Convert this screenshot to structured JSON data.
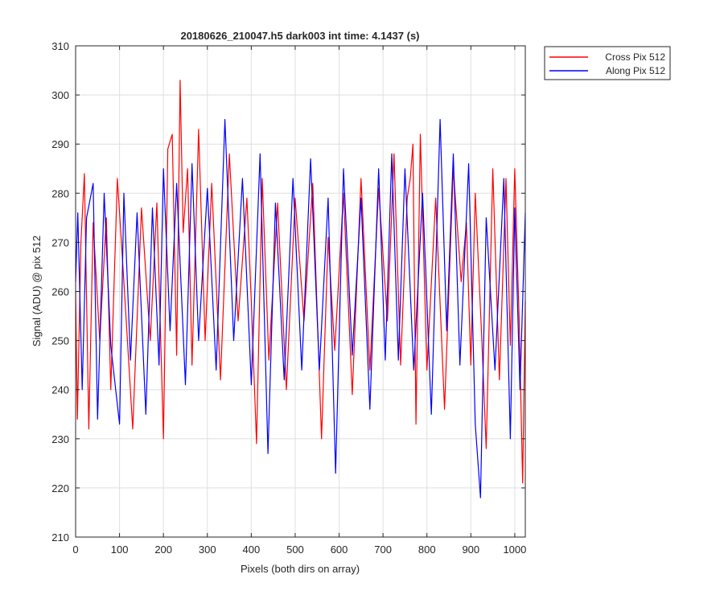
{
  "chart_data": {
    "type": "line",
    "title": "20180626_210047.h5  dark003   int time: 4.1437 (s)",
    "xlabel": "Pixels (both dirs on array)",
    "ylabel": "Signal (ADU) @ pix 512",
    "xlim": [
      0,
      1024
    ],
    "ylim": [
      210,
      310
    ],
    "xticks": [
      0,
      100,
      200,
      300,
      400,
      500,
      600,
      700,
      800,
      900,
      1000
    ],
    "yticks": [
      210,
      220,
      230,
      240,
      250,
      260,
      270,
      280,
      290,
      300,
      310
    ],
    "grid": true,
    "legend_position": "outside-top-right",
    "series": [
      {
        "name": "Cross Pix 512",
        "color": "#ff0000",
        "x": [
          0,
          4,
          12,
          20,
          30,
          40,
          55,
          70,
          80,
          95,
          110,
          130,
          150,
          170,
          185,
          200,
          210,
          220,
          230,
          238,
          245,
          255,
          265,
          280,
          295,
          310,
          330,
          350,
          370,
          390,
          400,
          412,
          425,
          440,
          460,
          480,
          500,
          520,
          540,
          560,
          575,
          590,
          610,
          630,
          650,
          670,
          690,
          710,
          725,
          740,
          755,
          762,
          768,
          775,
          785,
          800,
          820,
          840,
          860,
          878,
          890,
          900,
          910,
          925,
          935,
          950,
          965,
          980,
          990,
          1000,
          1010,
          1018,
          1024
        ],
        "values": [
          260,
          234,
          270,
          284,
          232,
          274,
          250,
          275,
          240,
          283,
          262,
          232,
          277,
          250,
          278,
          230,
          289,
          292,
          247,
          303,
          272,
          285,
          245,
          293,
          250,
          282,
          242,
          288,
          254,
          279,
          258,
          229,
          283,
          246,
          278,
          240,
          279,
          254,
          282,
          230,
          271,
          248,
          280,
          239,
          283,
          244,
          281,
          254,
          288,
          245,
          279,
          283,
          290,
          233,
          292,
          244,
          279,
          236,
          285,
          262,
          274,
          245,
          280,
          250,
          228,
          285,
          242,
          283,
          249,
          285,
          254,
          221,
          258
        ]
      },
      {
        "name": "Along Pix 512",
        "color": "#0000ff",
        "x": [
          0,
          5,
          15,
          25,
          40,
          50,
          65,
          80,
          100,
          110,
          125,
          140,
          160,
          175,
          190,
          200,
          215,
          230,
          250,
          265,
          280,
          300,
          320,
          340,
          360,
          380,
          400,
          420,
          438,
          455,
          475,
          495,
          515,
          535,
          555,
          575,
          592,
          610,
          630,
          650,
          670,
          690,
          705,
          720,
          735,
          750,
          770,
          790,
          810,
          830,
          845,
          860,
          875,
          895,
          910,
          922,
          935,
          955,
          975,
          990,
          1000,
          1012,
          1024
        ],
        "values": [
          262,
          276,
          240,
          275,
          282,
          234,
          280,
          249,
          233,
          280,
          246,
          276,
          235,
          277,
          245,
          285,
          252,
          282,
          241,
          286,
          250,
          281,
          244,
          295,
          250,
          283,
          241,
          288,
          227,
          278,
          242,
          283,
          244,
          287,
          244,
          279,
          223,
          285,
          247,
          279,
          236,
          285,
          246,
          288,
          246,
          285,
          244,
          280,
          235,
          295,
          252,
          288,
          245,
          286,
          233,
          218,
          275,
          244,
          283,
          230,
          277,
          240,
          276
        ]
      }
    ]
  }
}
